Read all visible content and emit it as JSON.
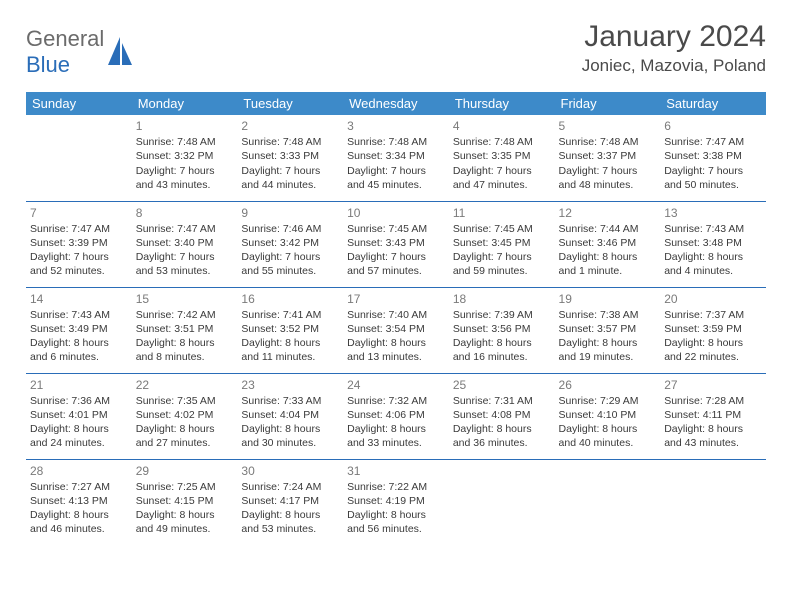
{
  "header": {
    "logo_general": "General",
    "logo_blue": "Blue",
    "month_title": "January 2024",
    "location": "Joniec, Mazovia, Poland"
  },
  "colors": {
    "header_bg": "#3d8ac9",
    "header_text": "#ffffff",
    "cell_border": "#2a6db8",
    "body_text": "#3a3a3a",
    "daynum_text": "#7a7a7a",
    "logo_gray": "#6b6b6b",
    "logo_blue": "#2a6db8",
    "page_bg": "#ffffff"
  },
  "weekdays": [
    "Sunday",
    "Monday",
    "Tuesday",
    "Wednesday",
    "Thursday",
    "Friday",
    "Saturday"
  ],
  "weeks": [
    [
      null,
      {
        "day": "1",
        "sunrise": "Sunrise: 7:48 AM",
        "sunset": "Sunset: 3:32 PM",
        "daylight": "Daylight: 7 hours and 43 minutes."
      },
      {
        "day": "2",
        "sunrise": "Sunrise: 7:48 AM",
        "sunset": "Sunset: 3:33 PM",
        "daylight": "Daylight: 7 hours and 44 minutes."
      },
      {
        "day": "3",
        "sunrise": "Sunrise: 7:48 AM",
        "sunset": "Sunset: 3:34 PM",
        "daylight": "Daylight: 7 hours and 45 minutes."
      },
      {
        "day": "4",
        "sunrise": "Sunrise: 7:48 AM",
        "sunset": "Sunset: 3:35 PM",
        "daylight": "Daylight: 7 hours and 47 minutes."
      },
      {
        "day": "5",
        "sunrise": "Sunrise: 7:48 AM",
        "sunset": "Sunset: 3:37 PM",
        "daylight": "Daylight: 7 hours and 48 minutes."
      },
      {
        "day": "6",
        "sunrise": "Sunrise: 7:47 AM",
        "sunset": "Sunset: 3:38 PM",
        "daylight": "Daylight: 7 hours and 50 minutes."
      }
    ],
    [
      {
        "day": "7",
        "sunrise": "Sunrise: 7:47 AM",
        "sunset": "Sunset: 3:39 PM",
        "daylight": "Daylight: 7 hours and 52 minutes."
      },
      {
        "day": "8",
        "sunrise": "Sunrise: 7:47 AM",
        "sunset": "Sunset: 3:40 PM",
        "daylight": "Daylight: 7 hours and 53 minutes."
      },
      {
        "day": "9",
        "sunrise": "Sunrise: 7:46 AM",
        "sunset": "Sunset: 3:42 PM",
        "daylight": "Daylight: 7 hours and 55 minutes."
      },
      {
        "day": "10",
        "sunrise": "Sunrise: 7:45 AM",
        "sunset": "Sunset: 3:43 PM",
        "daylight": "Daylight: 7 hours and 57 minutes."
      },
      {
        "day": "11",
        "sunrise": "Sunrise: 7:45 AM",
        "sunset": "Sunset: 3:45 PM",
        "daylight": "Daylight: 7 hours and 59 minutes."
      },
      {
        "day": "12",
        "sunrise": "Sunrise: 7:44 AM",
        "sunset": "Sunset: 3:46 PM",
        "daylight": "Daylight: 8 hours and 1 minute."
      },
      {
        "day": "13",
        "sunrise": "Sunrise: 7:43 AM",
        "sunset": "Sunset: 3:48 PM",
        "daylight": "Daylight: 8 hours and 4 minutes."
      }
    ],
    [
      {
        "day": "14",
        "sunrise": "Sunrise: 7:43 AM",
        "sunset": "Sunset: 3:49 PM",
        "daylight": "Daylight: 8 hours and 6 minutes."
      },
      {
        "day": "15",
        "sunrise": "Sunrise: 7:42 AM",
        "sunset": "Sunset: 3:51 PM",
        "daylight": "Daylight: 8 hours and 8 minutes."
      },
      {
        "day": "16",
        "sunrise": "Sunrise: 7:41 AM",
        "sunset": "Sunset: 3:52 PM",
        "daylight": "Daylight: 8 hours and 11 minutes."
      },
      {
        "day": "17",
        "sunrise": "Sunrise: 7:40 AM",
        "sunset": "Sunset: 3:54 PM",
        "daylight": "Daylight: 8 hours and 13 minutes."
      },
      {
        "day": "18",
        "sunrise": "Sunrise: 7:39 AM",
        "sunset": "Sunset: 3:56 PM",
        "daylight": "Daylight: 8 hours and 16 minutes."
      },
      {
        "day": "19",
        "sunrise": "Sunrise: 7:38 AM",
        "sunset": "Sunset: 3:57 PM",
        "daylight": "Daylight: 8 hours and 19 minutes."
      },
      {
        "day": "20",
        "sunrise": "Sunrise: 7:37 AM",
        "sunset": "Sunset: 3:59 PM",
        "daylight": "Daylight: 8 hours and 22 minutes."
      }
    ],
    [
      {
        "day": "21",
        "sunrise": "Sunrise: 7:36 AM",
        "sunset": "Sunset: 4:01 PM",
        "daylight": "Daylight: 8 hours and 24 minutes."
      },
      {
        "day": "22",
        "sunrise": "Sunrise: 7:35 AM",
        "sunset": "Sunset: 4:02 PM",
        "daylight": "Daylight: 8 hours and 27 minutes."
      },
      {
        "day": "23",
        "sunrise": "Sunrise: 7:33 AM",
        "sunset": "Sunset: 4:04 PM",
        "daylight": "Daylight: 8 hours and 30 minutes."
      },
      {
        "day": "24",
        "sunrise": "Sunrise: 7:32 AM",
        "sunset": "Sunset: 4:06 PM",
        "daylight": "Daylight: 8 hours and 33 minutes."
      },
      {
        "day": "25",
        "sunrise": "Sunrise: 7:31 AM",
        "sunset": "Sunset: 4:08 PM",
        "daylight": "Daylight: 8 hours and 36 minutes."
      },
      {
        "day": "26",
        "sunrise": "Sunrise: 7:29 AM",
        "sunset": "Sunset: 4:10 PM",
        "daylight": "Daylight: 8 hours and 40 minutes."
      },
      {
        "day": "27",
        "sunrise": "Sunrise: 7:28 AM",
        "sunset": "Sunset: 4:11 PM",
        "daylight": "Daylight: 8 hours and 43 minutes."
      }
    ],
    [
      {
        "day": "28",
        "sunrise": "Sunrise: 7:27 AM",
        "sunset": "Sunset: 4:13 PM",
        "daylight": "Daylight: 8 hours and 46 minutes."
      },
      {
        "day": "29",
        "sunrise": "Sunrise: 7:25 AM",
        "sunset": "Sunset: 4:15 PM",
        "daylight": "Daylight: 8 hours and 49 minutes."
      },
      {
        "day": "30",
        "sunrise": "Sunrise: 7:24 AM",
        "sunset": "Sunset: 4:17 PM",
        "daylight": "Daylight: 8 hours and 53 minutes."
      },
      {
        "day": "31",
        "sunrise": "Sunrise: 7:22 AM",
        "sunset": "Sunset: 4:19 PM",
        "daylight": "Daylight: 8 hours and 56 minutes."
      },
      null,
      null,
      null
    ]
  ]
}
